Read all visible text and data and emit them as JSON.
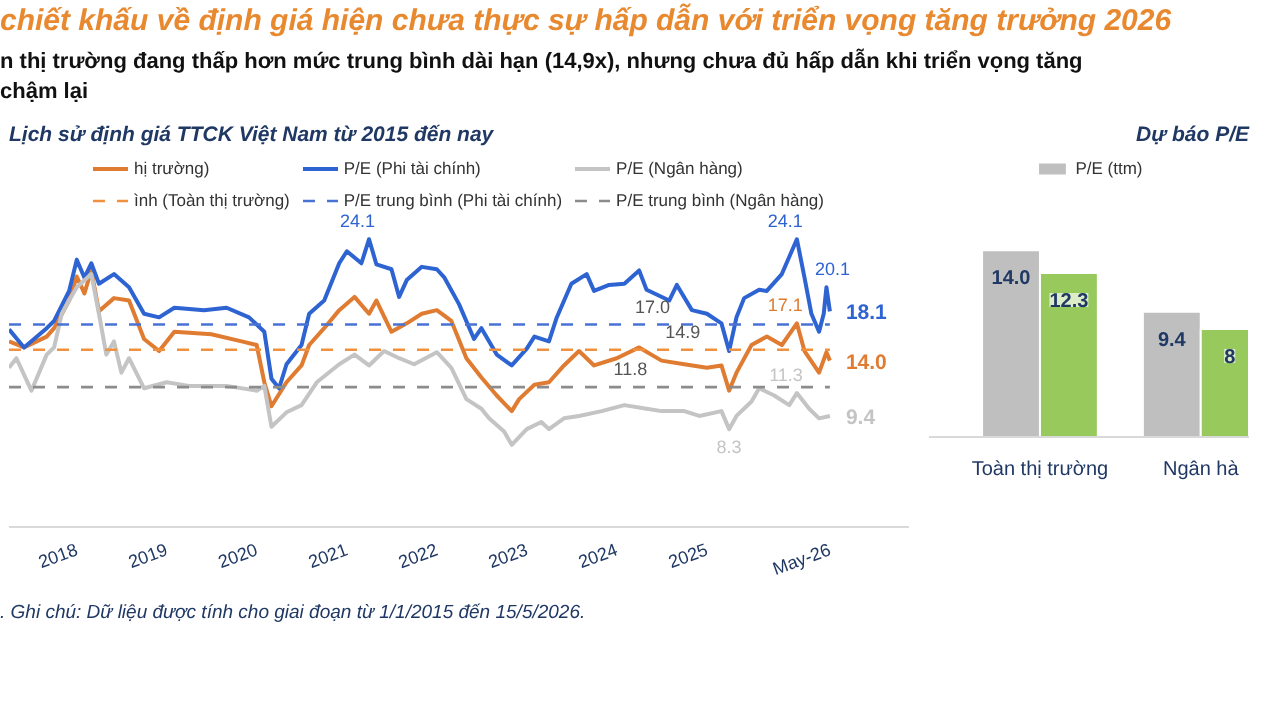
{
  "chart_data": [
    {
      "type": "line",
      "title": "Lịch sử định giá TTCK Việt Nam từ 2015 đến nay",
      "annotations": [
        "chiết khấu về định giá hiện chưa thực sự hấp dẫn với triển vọng tăng trưởng 2026",
        "n thị trường đang thấp hơn mức trung bình dài hạn (14,9x), nhưng chưa đủ hấp dẫn khi triển vọng tăng",
        "chậm lại",
        ". Ghi chú: Dữ liệu được tính cho giai đoạn từ 1/1/2015 đến 15/5/2026."
      ],
      "xlim": [
        "2017-04",
        "2027-04"
      ],
      "xticks": [
        {
          "value": "2018-01-01",
          "label": "2018"
        },
        {
          "value": "2019-01-01",
          "label": "2019"
        },
        {
          "value": "2020-01-01",
          "label": "2020"
        },
        {
          "value": "2021-01-01",
          "label": "2021"
        },
        {
          "value": "2022-01-01",
          "label": "2022"
        },
        {
          "value": "2023-01-01",
          "label": "2023"
        },
        {
          "value": "2024-01-01",
          "label": "2024"
        },
        {
          "value": "2025-01-01",
          "label": "2025"
        },
        {
          "value": "2026-05-15",
          "label": "May-26"
        }
      ],
      "tick_labels": "x",
      "legend": "top",
      "series": [
        {
          "name": "hị trường)",
          "color": "#e07c32",
          "x": [
            "2017-04",
            "2017-06",
            "2017-09",
            "2017-10",
            "2017-12",
            "2018-01",
            "2018-02",
            "2018-03",
            "2018-04",
            "2018-06",
            "2018-08",
            "2018-10",
            "2018-12",
            "2019-02",
            "2019-07",
            "2019-11",
            "2020-01",
            "2020-02",
            "2020-03",
            "2020-05",
            "2020-07",
            "2020-08",
            "2020-10",
            "2020-12",
            "2021-02",
            "2021-04",
            "2021-05",
            "2021-07",
            "2021-09",
            "2021-11",
            "2022-01",
            "2022-03",
            "2022-05",
            "2022-07",
            "2022-09",
            "2022-11",
            "2022-12",
            "2023-02",
            "2023-04",
            "2023-06",
            "2023-08",
            "2023-10",
            "2024-01",
            "2024-04",
            "2024-07",
            "2024-10",
            "2025-01",
            "2025-03",
            "2025-04",
            "2025-05",
            "2025-07",
            "2025-09",
            "2025-11",
            "2026-01",
            "2026-02",
            "2026-04-01",
            "2026-05-01",
            "2026-05-15"
          ],
          "values": [
            15.6,
            15.1,
            16.0,
            16.7,
            19.0,
            21.0,
            19.6,
            21.5,
            18.1,
            19.2,
            19.0,
            15.8,
            14.8,
            16.4,
            16.2,
            15.6,
            15.3,
            12.2,
            10.2,
            12.2,
            13.6,
            15.3,
            16.7,
            18.2,
            19.3,
            17.9,
            19.0,
            16.4,
            17.1,
            17.9,
            18.2,
            17.3,
            14.2,
            12.6,
            11.1,
            9.8,
            10.8,
            12.0,
            12.2,
            13.6,
            14.8,
            13.6,
            14.2,
            15.1,
            14.0,
            13.7,
            13.4,
            13.6,
            11.5,
            13.0,
            15.3,
            16.0,
            15.3,
            17.1,
            14.8,
            13.0,
            14.7,
            14.0
          ],
          "value_labels": [
            null,
            null,
            null,
            null,
            null,
            null,
            null,
            null,
            null,
            null,
            null,
            null,
            null,
            null,
            null,
            null,
            null,
            null,
            null,
            null,
            null,
            null,
            null,
            null,
            null,
            null,
            null,
            null,
            null,
            null,
            null,
            null,
            null,
            null,
            null,
            null,
            null,
            null,
            null,
            null,
            null,
            null,
            null,
            null,
            null,
            null,
            null,
            null,
            null,
            null,
            null,
            null,
            null,
            "17.1",
            null,
            null,
            null,
            "14.0"
          ]
        },
        {
          "name": "P/E (Phi tài chính)",
          "color": "#2e63d2",
          "x": [
            "2017-04",
            "2017-06",
            "2017-09",
            "2017-10",
            "2017-12",
            "2018-01",
            "2018-02",
            "2018-03",
            "2018-04",
            "2018-06",
            "2018-08",
            "2018-10",
            "2018-12",
            "2019-02",
            "2019-06",
            "2019-09",
            "2019-12",
            "2020-02",
            "2020-03",
            "2020-04",
            "2020-05",
            "2020-07",
            "2020-08",
            "2020-10",
            "2020-12",
            "2021-01",
            "2021-03",
            "2021-04",
            "2021-05",
            "2021-07",
            "2021-08",
            "2021-09",
            "2021-11",
            "2022-01",
            "2022-02",
            "2022-04",
            "2022-06",
            "2022-07",
            "2022-09",
            "2022-11",
            "2023-01",
            "2023-02",
            "2023-04",
            "2023-05",
            "2023-07",
            "2023-09",
            "2023-10",
            "2023-12",
            "2024-02",
            "2024-04",
            "2024-05",
            "2024-08",
            "2024-09",
            "2024-11",
            "2025-01",
            "2025-03",
            "2025-04",
            "2025-05",
            "2025-06",
            "2025-08",
            "2025-09",
            "2025-11",
            "2026-01",
            "2026-02",
            "2026-03",
            "2026-04-01",
            "2026-04-20",
            "2026-05-01",
            "2026-05-15"
          ],
          "values": [
            16.6,
            15.1,
            16.7,
            17.3,
            19.8,
            22.4,
            20.9,
            22.1,
            20.4,
            21.2,
            20.1,
            17.9,
            17.6,
            18.4,
            18.2,
            18.4,
            17.6,
            16.4,
            12.5,
            11.7,
            13.7,
            15.3,
            17.9,
            19.0,
            22.1,
            23.1,
            22.1,
            24.1,
            22.0,
            21.6,
            19.3,
            20.7,
            21.8,
            21.6,
            20.9,
            18.7,
            15.8,
            16.7,
            14.5,
            13.6,
            15.0,
            16.0,
            15.6,
            17.5,
            20.4,
            21.2,
            19.8,
            20.3,
            20.4,
            21.5,
            19.9,
            19.0,
            20.3,
            18.2,
            17.9,
            17.1,
            14.8,
            17.6,
            19.2,
            19.9,
            19.8,
            21.2,
            24.1,
            20.9,
            17.9,
            16.4,
            17.9,
            20.1,
            18.1
          ],
          "value_labels": [
            null,
            null,
            null,
            null,
            null,
            null,
            null,
            null,
            null,
            null,
            null,
            null,
            null,
            null,
            null,
            null,
            null,
            null,
            null,
            null,
            null,
            null,
            null,
            null,
            null,
            null,
            null,
            "24.1",
            null,
            null,
            null,
            null,
            null,
            null,
            null,
            null,
            null,
            null,
            null,
            null,
            null,
            null,
            null,
            null,
            null,
            null,
            null,
            null,
            null,
            null,
            null,
            null,
            null,
            null,
            null,
            null,
            null,
            null,
            null,
            null,
            null,
            null,
            "24.1",
            null,
            null,
            null,
            null,
            "20.1",
            "18.1"
          ]
        },
        {
          "name": "P/E (Ngân hàng)",
          "color": "#c4c4c4",
          "x": [
            "2017-04",
            "2017-05",
            "2017-07",
            "2017-09",
            "2017-10",
            "2017-11",
            "2017-12",
            "2018-01",
            "2018-03",
            "2018-04",
            "2018-05",
            "2018-06",
            "2018-07",
            "2018-08",
            "2018-10",
            "2019-01",
            "2019-04",
            "2019-09",
            "2020-01",
            "2020-02",
            "2020-03",
            "2020-05",
            "2020-07",
            "2020-09",
            "2020-12",
            "2021-02",
            "2021-04",
            "2021-06",
            "2021-08",
            "2021-10",
            "2022-01",
            "2022-03",
            "2022-05",
            "2022-07",
            "2022-08",
            "2022-10",
            "2022-11",
            "2023-01",
            "2023-03",
            "2023-04",
            "2023-06",
            "2023-08",
            "2023-11",
            "2024-02",
            "2024-05",
            "2024-07",
            "2024-10",
            "2024-12",
            "2025-03",
            "2025-04",
            "2025-05",
            "2025-07",
            "2025-08",
            "2025-10",
            "2025-12",
            "2026-01",
            "2026-02-20",
            "2026-04-01",
            "2026-05-15"
          ],
          "values": [
            13.4,
            14.2,
            11.5,
            14.5,
            15.1,
            17.9,
            19.0,
            20.1,
            21.2,
            17.9,
            14.5,
            15.6,
            13.0,
            14.2,
            11.7,
            12.2,
            11.9,
            11.9,
            11.5,
            11.9,
            8.5,
            9.7,
            10.3,
            12.2,
            13.7,
            14.5,
            13.6,
            14.8,
            14.2,
            13.7,
            14.7,
            13.4,
            10.8,
            10.0,
            9.2,
            8.1,
            7.0,
            8.3,
            8.9,
            8.3,
            9.2,
            9.4,
            9.8,
            10.3,
            10.0,
            9.8,
            9.8,
            9.4,
            9.8,
            8.3,
            9.4,
            10.6,
            11.7,
            11.1,
            10.3,
            11.3,
            10.0,
            9.2,
            9.4
          ],
          "value_labels": [
            null,
            null,
            null,
            null,
            null,
            null,
            null,
            null,
            null,
            null,
            null,
            null,
            null,
            null,
            null,
            null,
            null,
            null,
            null,
            null,
            null,
            null,
            null,
            null,
            null,
            null,
            null,
            null,
            null,
            null,
            null,
            null,
            null,
            null,
            null,
            null,
            null,
            null,
            null,
            null,
            null,
            null,
            null,
            null,
            null,
            null,
            null,
            null,
            null,
            "8.3",
            null,
            null,
            null,
            null,
            null,
            "11.3",
            null,
            null,
            "9.4"
          ]
        },
        {
          "name": "ình (Toàn thị trường)",
          "color": "#f0913f",
          "line_style": "dashed",
          "x": [
            "2017-04",
            "2024-09",
            "2026-05-15"
          ],
          "values": [
            14.9,
            14.9,
            14.9
          ],
          "value_labels": [
            null,
            "14.9",
            null
          ]
        },
        {
          "name": "P/E trung bình (Phi tài chính)",
          "color": "#4a72d4",
          "line_style": "dashed",
          "x": [
            "2017-04",
            "2024-05",
            "2026-05-15"
          ],
          "values": [
            17.0,
            17.0,
            17.0
          ],
          "value_labels": [
            null,
            "17.0",
            null
          ]
        },
        {
          "name": "P/E trung bình (Ngân hàng)",
          "color": "#8c8c8c",
          "line_style": "dashed",
          "x": [
            "2017-04",
            "2024-02",
            "2026-05-15"
          ],
          "values": [
            11.8,
            11.8,
            11.8
          ],
          "value_labels": [
            null,
            "11.8",
            null
          ]
        }
      ]
    },
    {
      "type": "bar",
      "title": "Dự báo P/E",
      "categories": [
        "Toàn thị trường",
        "Ngân hà"
      ],
      "ylim": [
        0,
        21
      ],
      "tick_labels": "x",
      "legend": "top",
      "series": [
        {
          "name": "P/E (ttm)",
          "color": "#bfbfbf",
          "values": [
            14.0,
            9.4
          ],
          "value_labels": [
            "14.0",
            "9.4"
          ]
        },
        {
          "color": "#97c95c",
          "values": [
            12.3,
            8.1
          ],
          "value_labels": [
            "12.3",
            "8"
          ]
        }
      ]
    }
  ]
}
